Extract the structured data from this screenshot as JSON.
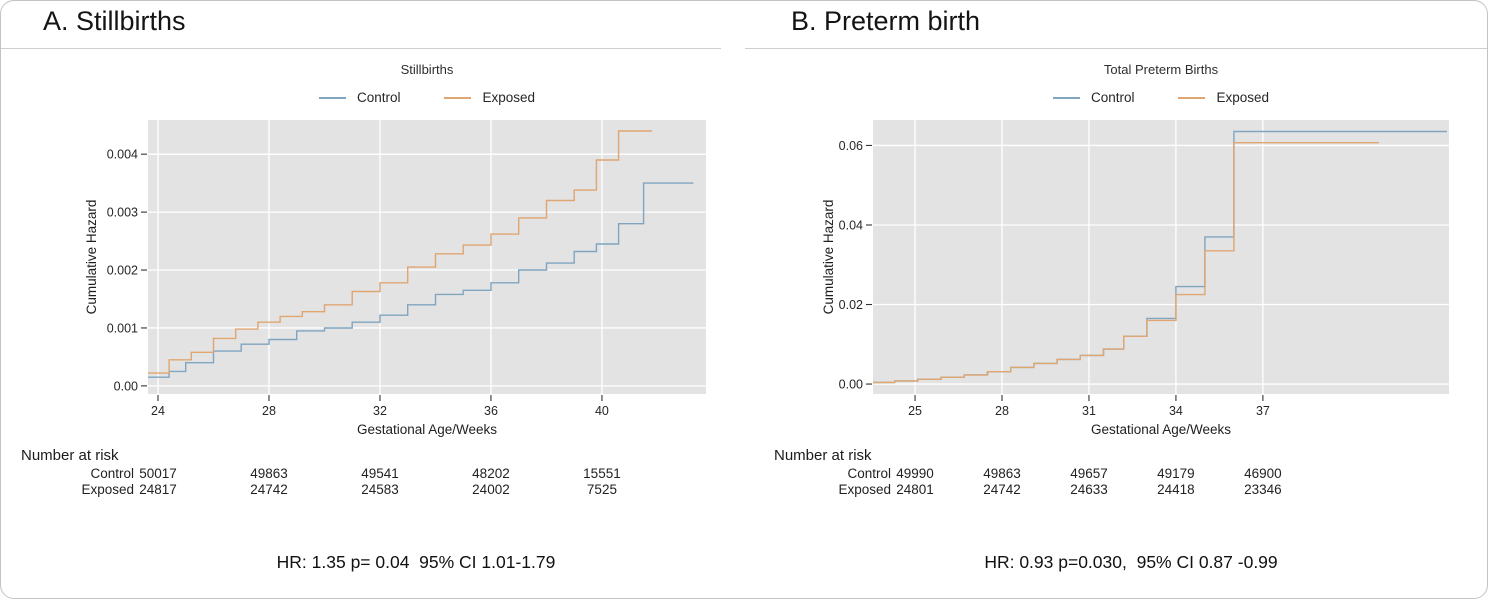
{
  "style": {
    "panel_background": "#E3E3E3",
    "grid_color": "#FFFFFF",
    "axis_text_color": "#262626",
    "risk_text_color": "#222222"
  },
  "chart_data": [
    {
      "type": "line",
      "step": true,
      "panel_header": "A. Stillbirths",
      "title": "Stillbirths",
      "xlabel": "Gestational Age/Weeks",
      "ylabel": "Cumulative Hazard",
      "legend_position": "top",
      "grid": true,
      "xlim": [
        23.64,
        43.75
      ],
      "ylim": [
        -0.00014,
        0.00459
      ],
      "xticks": {
        "values": [
          24,
          28,
          32,
          36,
          40
        ],
        "labels": [
          "24",
          "28",
          "32",
          "36",
          "40"
        ]
      },
      "yticks": {
        "values": [
          0,
          0.001,
          0.002,
          0.003,
          0.004
        ],
        "labels": [
          "0.00",
          "0.001",
          "0.002",
          "0.003",
          "0.004"
        ]
      },
      "series": [
        {
          "name": "Control",
          "color": "#7FA5C0",
          "x": [
            23.64,
            24.4,
            25.0,
            26.0,
            27.0,
            28.0,
            29.0,
            30.0,
            31.0,
            32.0,
            33.0,
            34.0,
            35.0,
            36.0,
            37.0,
            38.0,
            39.0,
            39.8,
            40.6,
            41.5
          ],
          "y": [
            0.00015,
            0.00025,
            0.0004,
            0.0006,
            0.00072,
            0.0008,
            0.00095,
            0.001,
            0.0011,
            0.00122,
            0.0014,
            0.00158,
            0.00165,
            0.00178,
            0.002,
            0.00212,
            0.00232,
            0.00245,
            0.0028,
            0.0035
          ],
          "end_x": 43.3
        },
        {
          "name": "Exposed",
          "color": "#E0A672",
          "x": [
            23.64,
            24.4,
            25.2,
            26.0,
            26.8,
            27.6,
            28.4,
            29.2,
            30.0,
            31.0,
            32.0,
            33.0,
            34.0,
            35.0,
            36.0,
            37.0,
            38.0,
            39.0,
            39.8,
            40.6
          ],
          "y": [
            0.00022,
            0.00045,
            0.00058,
            0.00082,
            0.00098,
            0.0011,
            0.0012,
            0.00128,
            0.0014,
            0.00163,
            0.00178,
            0.00205,
            0.00228,
            0.00243,
            0.00262,
            0.0029,
            0.0032,
            0.00338,
            0.0039,
            0.0044
          ],
          "end_x": 41.8
        }
      ],
      "number_at_risk": {
        "title": "Number at risk",
        "time_points": [
          24,
          28,
          32,
          36,
          40
        ],
        "rows": [
          {
            "label": "Control",
            "values": [
              "50017",
              "49863",
              "49541",
              "48202",
              "15551"
            ]
          },
          {
            "label": "Exposed",
            "values": [
              "24817",
              "24742",
              "24583",
              "24002",
              "7525"
            ]
          }
        ]
      },
      "stats": "HR: 1.35 p= 0.04  95% CI 1.01-1.79"
    },
    {
      "type": "line",
      "step": true,
      "panel_header": "B. Preterm birth",
      "title": "Total Preterm Births",
      "xlabel": "Gestational Age/Weeks",
      "ylabel": "Cumulative Hazard",
      "legend_position": "top",
      "grid": true,
      "xlim": [
        23.55,
        43.42
      ],
      "ylim": [
        -0.0025,
        0.0664
      ],
      "xticks": {
        "values": [
          25,
          28,
          31,
          34,
          37
        ],
        "labels": [
          "25",
          "28",
          "31",
          "34",
          "37"
        ]
      },
      "yticks": {
        "values": [
          0,
          0.02,
          0.04,
          0.06
        ],
        "labels": [
          "0.00",
          "0.02",
          "0.04",
          "0.06"
        ]
      },
      "series": [
        {
          "name": "Control",
          "color": "#7FA5C0",
          "x": [
            23.55,
            24.3,
            25.1,
            25.9,
            26.7,
            27.5,
            28.3,
            29.1,
            29.9,
            30.7,
            31.5,
            32.2,
            33.0,
            34.0,
            35.0,
            36.0
          ],
          "y": [
            0.0004,
            0.0008,
            0.0012,
            0.0017,
            0.0023,
            0.0031,
            0.0042,
            0.0052,
            0.0062,
            0.0072,
            0.0088,
            0.012,
            0.0165,
            0.0245,
            0.037,
            0.0635
          ],
          "end_x": 43.35
        },
        {
          "name": "Exposed",
          "color": "#E0A672",
          "x": [
            23.55,
            24.3,
            25.1,
            25.9,
            26.7,
            27.5,
            28.3,
            29.1,
            29.9,
            30.7,
            31.5,
            32.2,
            33.0,
            34.0,
            35.0,
            36.0
          ],
          "y": [
            0.0004,
            0.0008,
            0.0012,
            0.0017,
            0.0023,
            0.0031,
            0.0042,
            0.0052,
            0.0062,
            0.0072,
            0.0088,
            0.012,
            0.016,
            0.0225,
            0.0335,
            0.0607
          ],
          "end_x": 41.0
        }
      ],
      "number_at_risk": {
        "title": "Number at risk",
        "time_points": [
          25,
          28,
          31,
          34,
          37
        ],
        "rows": [
          {
            "label": "Control",
            "values": [
              "49990",
              "49863",
              "49657",
              "49179",
              "46900"
            ]
          },
          {
            "label": "Exposed",
            "values": [
              "24801",
              "24742",
              "24633",
              "24418",
              "23346"
            ]
          }
        ]
      },
      "stats": "HR: 0.93 p=0.030,  95% CI 0.87 -0.99"
    }
  ]
}
